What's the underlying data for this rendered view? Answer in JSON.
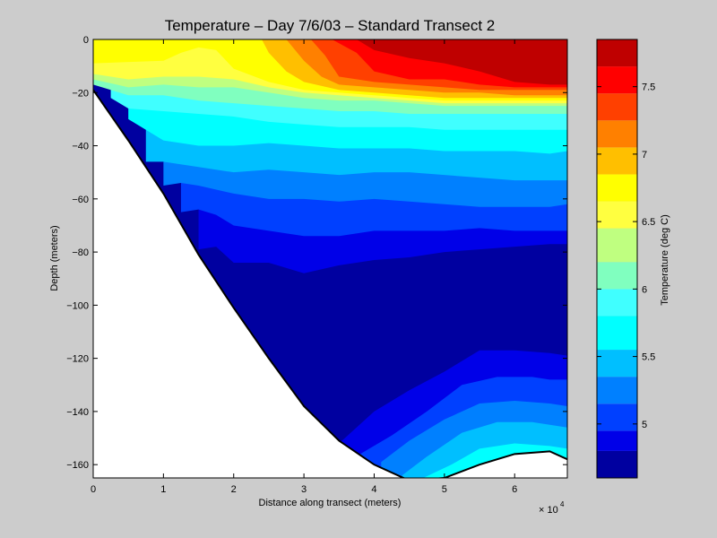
{
  "chart_data": {
    "type": "heatmap",
    "subtype": "filled-contour",
    "title": "Temperature – Day 7/6/03 – Standard Transect 2",
    "xlabel": "Distance along transect (meters)",
    "ylabel": "Depth (meters)",
    "x_exponent_label": "× 10",
    "x_exponent_power": "4",
    "xlim": [
      0,
      67500
    ],
    "ylim": [
      -165,
      0
    ],
    "xticks": [
      {
        "value": 0,
        "label": "0"
      },
      {
        "value": 10000,
        "label": "1"
      },
      {
        "value": 20000,
        "label": "2"
      },
      {
        "value": 30000,
        "label": "3"
      },
      {
        "value": 40000,
        "label": "4"
      },
      {
        "value": 50000,
        "label": "5"
      },
      {
        "value": 60000,
        "label": "6"
      }
    ],
    "yticks": [
      {
        "value": 0,
        "label": "0"
      },
      {
        "value": -20,
        "label": "−20"
      },
      {
        "value": -40,
        "label": "−40"
      },
      {
        "value": -60,
        "label": "−60"
      },
      {
        "value": -80,
        "label": "−80"
      },
      {
        "value": -100,
        "label": "−100"
      },
      {
        "value": -120,
        "label": "−120"
      },
      {
        "value": -140,
        "label": "−140"
      },
      {
        "value": -160,
        "label": "−160"
      }
    ],
    "colorbar": {
      "label": "Temperature (deg C)",
      "clim": [
        4.6,
        7.85
      ],
      "ticks": [
        {
          "value": 5,
          "label": "5"
        },
        {
          "value": 5.5,
          "label": "5.5"
        },
        {
          "value": 6,
          "label": "6"
        },
        {
          "value": 6.5,
          "label": "6.5"
        },
        {
          "value": 7,
          "label": "7"
        },
        {
          "value": 7.5,
          "label": "7.5"
        }
      ],
      "levels": [
        {
          "min": 4.6,
          "max": 4.8,
          "color": "#0000a0"
        },
        {
          "min": 4.8,
          "max": 4.95,
          "color": "#0000e8"
        },
        {
          "min": 4.95,
          "max": 5.15,
          "color": "#0040ff"
        },
        {
          "min": 5.15,
          "max": 5.35,
          "color": "#0080ff"
        },
        {
          "min": 5.35,
          "max": 5.55,
          "color": "#00bfff"
        },
        {
          "min": 5.55,
          "max": 5.8,
          "color": "#00ffff"
        },
        {
          "min": 5.8,
          "max": 6.0,
          "color": "#40ffff"
        },
        {
          "min": 6.0,
          "max": 6.2,
          "color": "#80ffbf"
        },
        {
          "min": 6.2,
          "max": 6.45,
          "color": "#bfff80"
        },
        {
          "min": 6.45,
          "max": 6.65,
          "color": "#ffff40"
        },
        {
          "min": 6.65,
          "max": 6.85,
          "color": "#ffff00"
        },
        {
          "min": 6.85,
          "max": 7.05,
          "color": "#ffbf00"
        },
        {
          "min": 7.05,
          "max": 7.25,
          "color": "#ff8000"
        },
        {
          "min": 7.25,
          "max": 7.45,
          "color": "#ff4000"
        },
        {
          "min": 7.45,
          "max": 7.65,
          "color": "#ff0000"
        },
        {
          "min": 7.65,
          "max": 7.85,
          "color": "#bf0000"
        }
      ]
    },
    "grid": false,
    "bottom_profile": [
      {
        "x": 0,
        "depth": -19
      },
      {
        "x": 5000,
        "depth": -38
      },
      {
        "x": 10000,
        "depth": -58
      },
      {
        "x": 15000,
        "depth": -81
      },
      {
        "x": 20000,
        "depth": -101
      },
      {
        "x": 25000,
        "depth": -120
      },
      {
        "x": 30000,
        "depth": -138
      },
      {
        "x": 35000,
        "depth": -151
      },
      {
        "x": 40000,
        "depth": -160
      },
      {
        "x": 45000,
        "depth": -166
      },
      {
        "x": 50000,
        "depth": -165
      },
      {
        "x": 55000,
        "depth": -160
      },
      {
        "x": 60000,
        "depth": -156
      },
      {
        "x": 65000,
        "depth": -155
      },
      {
        "x": 67500,
        "depth": -158
      }
    ],
    "isotherms": [
      {
        "temperature": 7.65,
        "x": [
          37500,
          40000,
          45000,
          50000,
          55000,
          60000,
          65000,
          67500
        ],
        "depth": [
          0,
          -4,
          -7,
          -9,
          -12,
          -16,
          -17,
          -17
        ]
      },
      {
        "temperature": 7.45,
        "x": [
          34000,
          37500,
          40000,
          45000,
          50000,
          55000,
          60000,
          65000,
          67500
        ],
        "depth": [
          0,
          -5,
          -12,
          -15,
          -15,
          -17,
          -18,
          -18,
          -18
        ]
      },
      {
        "temperature": 7.25,
        "x": [
          31000,
          33000,
          35000,
          40000,
          45000,
          50000,
          55000,
          60000,
          65000,
          67500
        ],
        "depth": [
          0,
          -6,
          -14,
          -16,
          -17,
          -18,
          -19,
          -19,
          -19,
          -19
        ]
      },
      {
        "temperature": 7.05,
        "x": [
          27500,
          30000,
          32500,
          35000,
          40000,
          45000,
          50000,
          55000,
          60000,
          65000,
          67500
        ],
        "depth": [
          0,
          -8,
          -14,
          -17,
          -18,
          -19,
          -20,
          -20,
          -21,
          -21,
          -21
        ]
      },
      {
        "temperature": 6.85,
        "x": [
          24000,
          25000,
          27500,
          30000,
          35000,
          40000,
          45000,
          50000,
          55000,
          60000,
          65000,
          67500
        ],
        "depth": [
          0,
          -5,
          -12,
          -16,
          -19,
          -20,
          -21,
          -22,
          -22,
          -22,
          -22,
          -22
        ]
      },
      {
        "temperature": 6.65,
        "x": [
          0,
          10000,
          12500,
          15000,
          17500,
          20000,
          25000,
          30000,
          35000,
          40000,
          45000,
          50000,
          55000,
          60000,
          65000,
          67500
        ],
        "depth": [
          -9,
          -8,
          -5,
          -3,
          -4,
          -11,
          -16,
          -19,
          -20,
          -21,
          -22,
          -23,
          -23,
          -23,
          -23,
          -23
        ]
      },
      {
        "temperature": 6.45,
        "x": [
          0,
          5000,
          10000,
          15000,
          20000,
          25000,
          30000,
          35000,
          40000,
          45000,
          50000,
          55000,
          60000,
          65000,
          67500
        ],
        "depth": [
          -13,
          -15,
          -14,
          -14,
          -15,
          -18,
          -20,
          -21,
          -22,
          -23,
          -24,
          -24,
          -24,
          -24,
          -24
        ]
      },
      {
        "temperature": 6.2,
        "x": [
          0,
          5000,
          10000,
          15000,
          20000,
          25000,
          30000,
          35000,
          40000,
          45000,
          50000,
          55000,
          60000,
          65000,
          67500
        ],
        "depth": [
          -15,
          -18,
          -17,
          -18,
          -18,
          -20,
          -22,
          -23,
          -23,
          -24,
          -25,
          -25,
          -25,
          -25,
          -25
        ]
      },
      {
        "temperature": 6.0,
        "x": [
          0,
          5000,
          10000,
          15000,
          20000,
          25000,
          30000,
          35000,
          40000,
          45000,
          50000,
          55000,
          60000,
          65000,
          67500
        ],
        "depth": [
          -17,
          -21,
          -21,
          -23,
          -24,
          -25,
          -26,
          -27,
          -27,
          -28,
          -28,
          -28,
          -28,
          -28,
          -28
        ]
      },
      {
        "temperature": 5.8,
        "x": [
          2500,
          5000,
          10000,
          15000,
          20000,
          25000,
          30000,
          35000,
          40000,
          45000,
          50000,
          55000,
          60000,
          65000,
          67500
        ],
        "depth": [
          -22,
          -26,
          -27,
          -28,
          -29,
          -31,
          -32,
          -33,
          -33,
          -33,
          -34,
          -34,
          -34,
          -34,
          -34
        ]
      },
      {
        "temperature": 5.55,
        "x": [
          5000,
          10000,
          15000,
          20000,
          25000,
          30000,
          35000,
          40000,
          45000,
          50000,
          55000,
          60000,
          65000,
          67500
        ],
        "depth": [
          -30,
          -38,
          -40,
          -40,
          -39,
          -40,
          -41,
          -41,
          -41,
          -42,
          -42,
          -42,
          -43,
          -42
        ]
      },
      {
        "temperature": 5.35,
        "x": [
          7500,
          10000,
          15000,
          20000,
          25000,
          30000,
          35000,
          40000,
          45000,
          50000,
          55000,
          60000,
          65000,
          67500
        ],
        "depth": [
          -46,
          -46,
          -48,
          -50,
          -49,
          -50,
          -51,
          -50,
          -50,
          -51,
          -52,
          -53,
          -53,
          -53
        ]
      },
      {
        "temperature": 5.15,
        "x": [
          10000,
          12500,
          15000,
          20000,
          25000,
          30000,
          35000,
          40000,
          45000,
          50000,
          55000,
          60000,
          65000,
          67500
        ],
        "depth": [
          -55,
          -54,
          -55,
          -58,
          -60,
          -60,
          -61,
          -60,
          -61,
          -62,
          -63,
          -63,
          -63,
          -62
        ]
      },
      {
        "temperature": 4.95,
        "x": [
          12500,
          15000,
          17500,
          20000,
          25000,
          30000,
          35000,
          40000,
          45000,
          50000,
          55000,
          60000,
          65000,
          67500
        ],
        "depth": [
          -65,
          -64,
          -66,
          -70,
          -72,
          -74,
          -74,
          -72,
          -72,
          -72,
          -71,
          -72,
          -72,
          -72
        ]
      },
      {
        "temperature": 4.8,
        "x": [
          15000,
          17500,
          20000,
          25000,
          30000,
          35000,
          40000,
          45000,
          50000,
          55000,
          60000,
          65000,
          67500
        ],
        "depth": [
          -79,
          -78,
          -84,
          -84,
          -88,
          -85,
          -83,
          -82,
          -80,
          -79,
          -78,
          -77,
          -77
        ]
      },
      {
        "temperature": 4.8,
        "x": [
          35000,
          40000,
          45000,
          50000,
          55000,
          60000,
          65000,
          67500
        ],
        "depth": [
          -152,
          -140,
          -132,
          -125,
          -117,
          -117,
          -118,
          -119
        ]
      },
      {
        "temperature": 4.95,
        "x": [
          38000,
          42500,
          47500,
          52500,
          57500,
          62500,
          65000,
          67500
        ],
        "depth": [
          -156,
          -149,
          -140,
          -130,
          -127,
          -127,
          -128,
          -128
        ]
      },
      {
        "temperature": 5.15,
        "x": [
          41000,
          45000,
          50000,
          55000,
          60000,
          65000,
          67500
        ],
        "depth": [
          -159,
          -151,
          -143,
          -137,
          -136,
          -137,
          -138
        ]
      },
      {
        "temperature": 5.35,
        "x": [
          44000,
          47500,
          52500,
          57500,
          62500,
          67500
        ],
        "depth": [
          -164,
          -157,
          -148,
          -144,
          -144,
          -146
        ]
      },
      {
        "temperature": 5.55,
        "x": [
          47000,
          51000,
          55000,
          60000,
          65000,
          67500
        ],
        "depth": [
          -165,
          -160,
          -154,
          -152,
          -153,
          -154
        ]
      }
    ]
  }
}
